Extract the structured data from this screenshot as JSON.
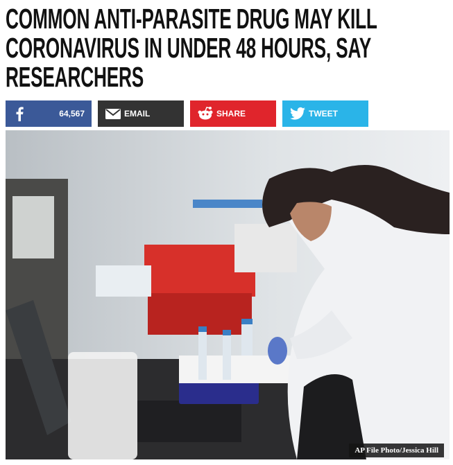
{
  "article": {
    "title": "COMMON ANTI-PARASITE DRUG MAY KILL CORONAVIRUS IN UNDER 48 HOURS, SAY RESEARCHERS",
    "share": {
      "facebook_count": "64,567",
      "email": "EMAIL",
      "reddit": "SHARE",
      "twitter": "TWEET"
    },
    "photo_credit": "AP File Photo/Jessica Hill"
  }
}
